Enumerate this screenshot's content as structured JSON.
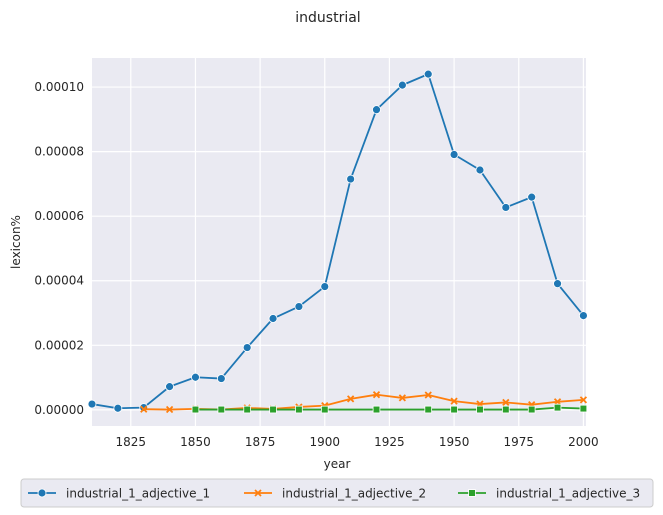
{
  "chart_data": {
    "type": "line",
    "title": "industrial",
    "xlabel": "year",
    "ylabel": "lexicon%",
    "xlim": [
      1810,
      2001
    ],
    "ylim": [
      -5e-06,
      0.000109
    ],
    "xticks": [
      1825,
      1850,
      1875,
      1900,
      1925,
      1950,
      1975,
      2000
    ],
    "xtick_labels": [
      "1825",
      "1850",
      "1875",
      "1900",
      "1925",
      "1950",
      "1975",
      "2000"
    ],
    "yticks": [
      0,
      2e-05,
      4e-05,
      6e-05,
      8e-05,
      0.0001
    ],
    "ytick_labels": [
      "0.00000",
      "0.00002",
      "0.00004",
      "0.00006",
      "0.00008",
      "0.00010"
    ],
    "grid": true,
    "legend_position": "bottom-center",
    "series": [
      {
        "name": "industrial_1_adjective_1",
        "color": "#1f77b4",
        "marker": "circle",
        "x": [
          1810,
          1820,
          1830,
          1840,
          1850,
          1860,
          1870,
          1880,
          1890,
          1900,
          1910,
          1920,
          1930,
          1940,
          1950,
          1960,
          1970,
          1980,
          1990,
          2000
        ],
        "y": [
          1.8e-06,
          5e-07,
          7e-07,
          7.2e-06,
          1.01e-05,
          9.7e-06,
          1.93e-05,
          2.83e-05,
          3.2e-05,
          3.82e-05,
          7.15e-05,
          9.3e-05,
          0.0001006,
          0.000104,
          7.91e-05,
          7.43e-05,
          6.27e-05,
          6.59e-05,
          3.91e-05,
          2.92e-05
        ]
      },
      {
        "name": "industrial_1_adjective_2",
        "color": "#ff7f0e",
        "marker": "x",
        "x": [
          1830,
          1840,
          1850,
          1860,
          1870,
          1880,
          1890,
          1900,
          1910,
          1920,
          1930,
          1940,
          1950,
          1960,
          1970,
          1980,
          1990,
          2000
        ],
        "y": [
          2e-07,
          1e-07,
          3e-07,
          1e-07,
          6e-07,
          3e-07,
          9e-07,
          1.3e-06,
          3.4e-06,
          4.7e-06,
          3.7e-06,
          4.6e-06,
          2.7e-06,
          1.8e-06,
          2.3e-06,
          1.6e-06,
          2.5e-06,
          3.1e-06
        ]
      },
      {
        "name": "industrial_1_adjective_3",
        "color": "#2ca02c",
        "marker": "square",
        "x": [
          1850,
          1860,
          1870,
          1880,
          1890,
          1900,
          1920,
          1940,
          1950,
          1960,
          1970,
          1980,
          1990,
          2000
        ],
        "y": [
          1e-07,
          1e-07,
          1e-07,
          1e-07,
          1e-07,
          1e-07,
          1e-07,
          1e-07,
          1e-07,
          1e-07,
          1e-07,
          1e-07,
          7e-07,
          4e-07
        ]
      }
    ]
  }
}
